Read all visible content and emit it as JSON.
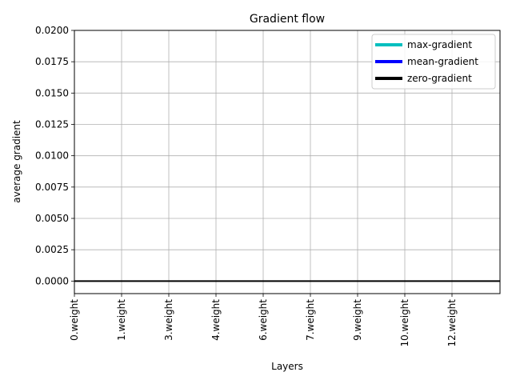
{
  "chart_data": {
    "type": "bar",
    "title": "Gradient flow",
    "xlabel": "Layers",
    "ylabel": "average gradient",
    "categories": [
      "0.weight",
      "1.weight",
      "3.weight",
      "4.weight",
      "6.weight",
      "7.weight",
      "9.weight",
      "10.weight",
      "12.weight"
    ],
    "series": [
      {
        "name": "max-gradient",
        "color": "#00bfbf",
        "values": [
          0,
          0,
          0,
          0,
          0,
          0,
          0,
          0,
          0
        ]
      },
      {
        "name": "mean-gradient",
        "color": "#0000ff",
        "values": [
          0,
          0,
          0,
          0,
          0,
          0,
          0,
          0,
          0
        ]
      }
    ],
    "zero_line": {
      "name": "zero-gradient",
      "color": "#000000",
      "value": 0
    },
    "ylim": [
      -0.001,
      0.02
    ],
    "yticks": [
      "0.0000",
      "0.0025",
      "0.0050",
      "0.0075",
      "0.0100",
      "0.0125",
      "0.0150",
      "0.0175",
      "0.0200"
    ],
    "ytick_values": [
      0,
      0.0025,
      0.005,
      0.0075,
      0.01,
      0.0125,
      0.015,
      0.0175,
      0.02
    ],
    "grid": true,
    "legend": [
      "max-gradient",
      "mean-gradient",
      "zero-gradient"
    ],
    "legend_position": "top-right"
  }
}
